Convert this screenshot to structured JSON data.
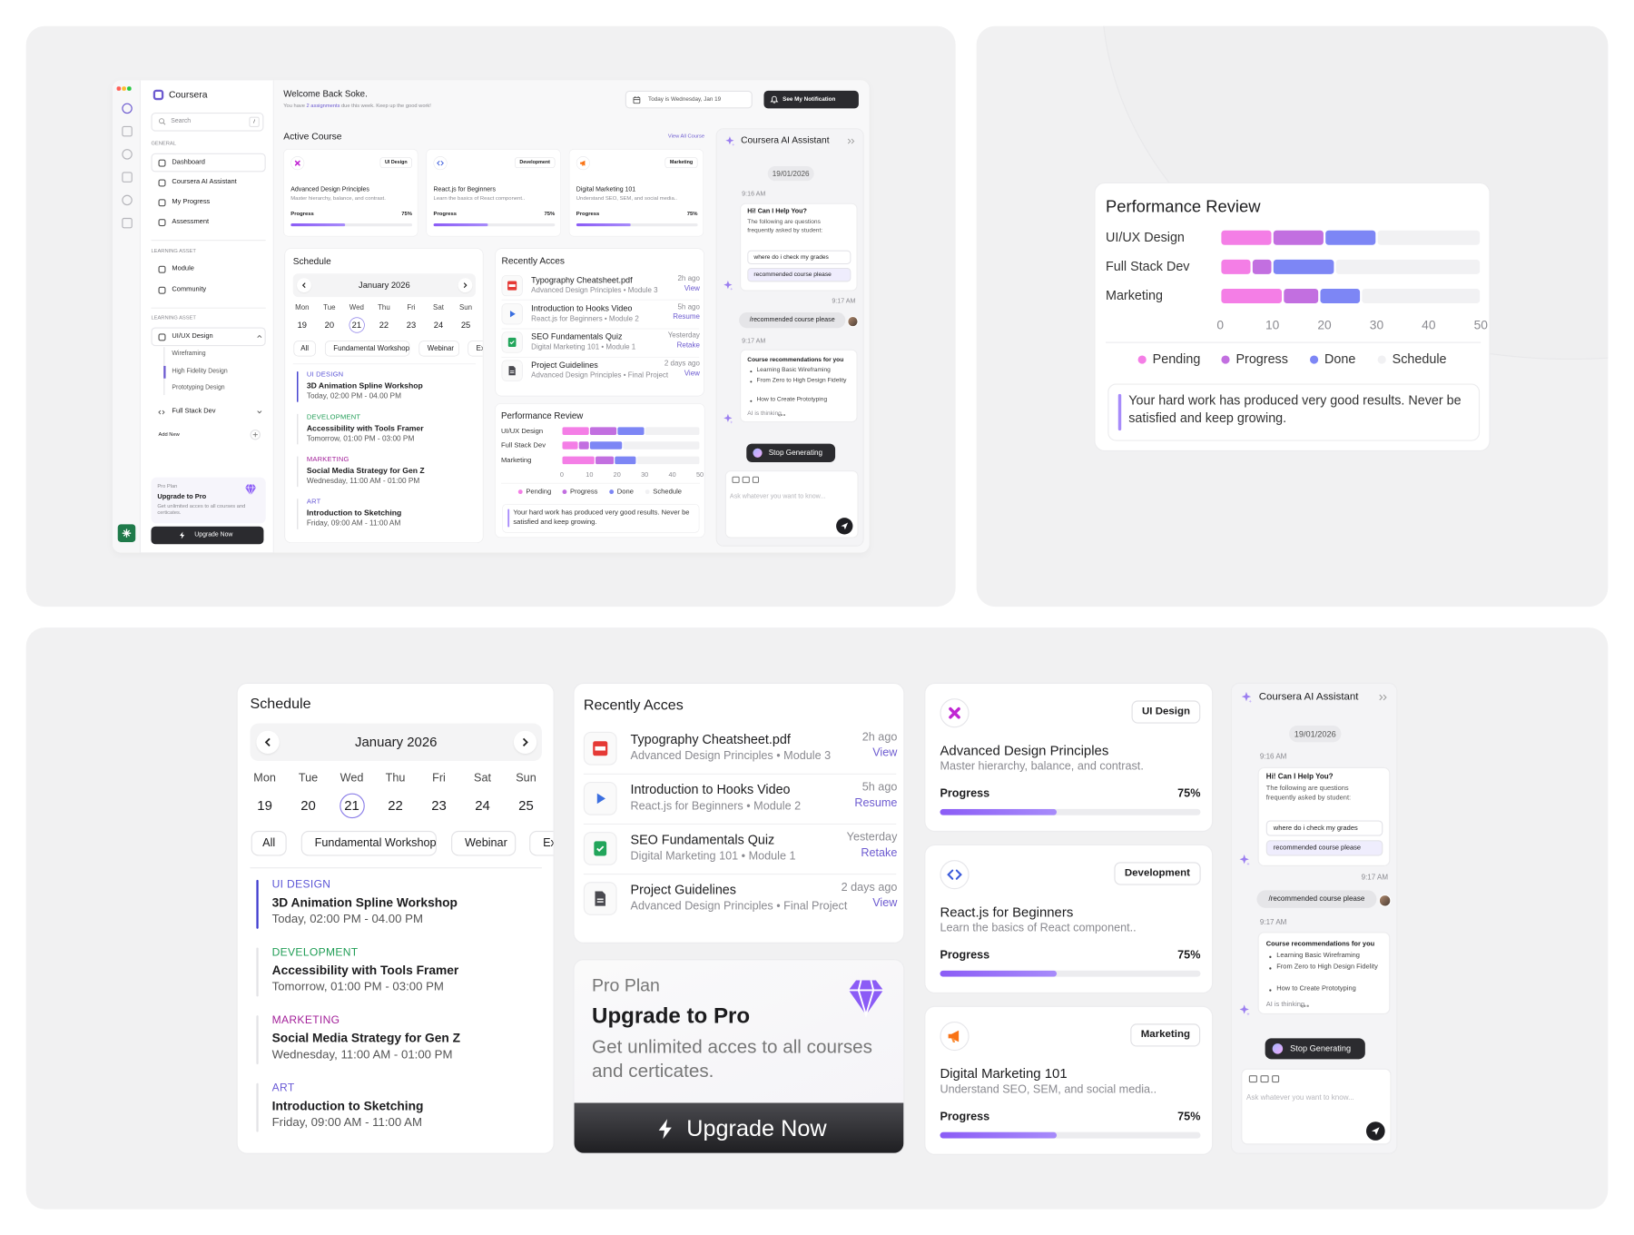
{
  "app": {
    "brand": "Coursera",
    "search_placeholder": "Search",
    "search_shortcut": "/",
    "general_label": "GENERAL",
    "general_nav": [
      "Dashboard",
      "Coursera AI Assistant",
      "My Progress",
      "Assessment"
    ],
    "asset_label": "LEARNING ASSET",
    "asset_nav": [
      "Module",
      "Community"
    ],
    "asset_label_2": "LEARNING ASSET",
    "tree": [
      {
        "label": "UI/UX Design",
        "children": [
          "Wireframing",
          "High Fidelity Design",
          "Prototyping Design"
        ]
      },
      {
        "label": "Full Stack Dev",
        "children": []
      }
    ],
    "add_new": "Add New"
  },
  "header": {
    "welcome": "Welcome Back Soke.",
    "note_before": "You have",
    "note_link": "2 assignments",
    "note_after": "due this week. Keep up the good work!",
    "today": "Today is Wednesday, Jan 19",
    "notification": "See My Notification"
  },
  "active_course": {
    "title": "Active Course",
    "view_all": "View All Course",
    "courses": [
      {
        "tag": "UI Design",
        "title": "Advanced Design Principles",
        "description": "Master hierarchy, balance, and contrast.",
        "progress_label": "Progress",
        "progress": "75%"
      },
      {
        "tag": "Development",
        "title": "React.js for Beginners",
        "description": "Learn the basics of React component..",
        "progress_label": "Progress",
        "progress": "75%"
      },
      {
        "tag": "Marketing",
        "title": "Digital Marketing 101",
        "description": "Understand SEO, SEM, and social media..",
        "progress_label": "Progress",
        "progress": "75%"
      }
    ]
  },
  "schedule": {
    "title": "Schedule",
    "month": "January 2026",
    "weekdays": [
      "Mon",
      "Tue",
      "Wed",
      "Thu",
      "Fri",
      "Sat",
      "Sun"
    ],
    "days": [
      19,
      20,
      21,
      22,
      23,
      24,
      25
    ],
    "selected": 21,
    "filters": [
      "All",
      "Fundamental Workshop",
      "Webinar",
      "Exa"
    ],
    "events": [
      {
        "category": "UI DESIGN",
        "color": "#5b55d6",
        "title": "3D Animation Spline Workshop",
        "time": "Today, 02:00 PM - 04.00 PM"
      },
      {
        "category": "DEVELOPMENT",
        "color": "#1f9d55",
        "title": "Accessibility with Tools Framer",
        "time": "Tomorrow, 01:00 PM - 03:00 PM"
      },
      {
        "category": "MARKETING",
        "color": "#a3219a",
        "title": "Social Media Strategy for Gen Z",
        "time": "Wednesday, 11:00 AM - 01:00 PM"
      },
      {
        "category": "ART",
        "color": "#6a5bd6",
        "title": "Introduction to Sketching",
        "time": "Friday, 09:00 AM - 11:00 AM"
      }
    ]
  },
  "recent": {
    "title": "Recently Acces",
    "items": [
      {
        "title": "Typography Cheatsheet.pdf",
        "subtitle": "Advanced Design Principles • Module 3",
        "time": "2h ago",
        "action": "View"
      },
      {
        "title": "Introduction to Hooks Video",
        "subtitle": "React.js for Beginners • Module 2",
        "time": "5h ago",
        "action": "Resume"
      },
      {
        "title": "SEO Fundamentals Quiz",
        "subtitle": "Digital Marketing 101 • Module 1",
        "time": "Yesterday",
        "action": "Retake"
      },
      {
        "title": "Project Guidelines",
        "subtitle": "Advanced Design Principles • Final Project",
        "time": "2 days ago",
        "action": "View"
      }
    ]
  },
  "chart_data": {
    "type": "bar",
    "orientation": "horizontal",
    "stacked": true,
    "title": "Performance Review",
    "categories": [
      "UI/UX Design",
      "Full Stack Dev",
      "Marketing"
    ],
    "series": [
      {
        "name": "Pending",
        "color": "#f47ee6",
        "values": [
          10,
          6,
          12
        ]
      },
      {
        "name": "Progress",
        "color": "#c26fe0",
        "values": [
          10,
          4,
          7
        ]
      },
      {
        "name": "Done",
        "color": "#7d86f5",
        "values": [
          10,
          12,
          8
        ]
      },
      {
        "name": "Schedule",
        "color": "#f1f1f3",
        "values": [
          20,
          28,
          23
        ]
      }
    ],
    "xlim": [
      0,
      50
    ],
    "xticks": [
      0,
      10,
      20,
      30,
      40,
      50
    ],
    "legend": "bottom",
    "annotation": "Your hard work has produced very good results. Never be satisfied and keep growing."
  },
  "pro": {
    "label": "Pro Plan",
    "title": "Upgrade to Pro",
    "description": "Get unlimited acces to all courses and certicates.",
    "button": "Upgrade Now"
  },
  "assistant": {
    "title": "Coursera AI Assistant",
    "date": "19/01/2026",
    "greeting_time": "9:16 AM",
    "greeting": "Hi! Can I Help You?",
    "intro": "The following are questions frequently asked by student:",
    "suggestions": [
      "where do i check my grades",
      "recommended course please"
    ],
    "user_time": "9:17 AM",
    "user_message": "/recommended course please",
    "reply_time": "9:17 AM",
    "reply_title": "Course recommendations for you",
    "recommendations": [
      "Learning Basic Wireframing",
      "From Zero to High Design Fidelity",
      "How to Create Prototyping"
    ],
    "thinking": "AI is thinking",
    "stop": "Stop Generating",
    "placeholder": "Ask whatever you want to know..."
  }
}
